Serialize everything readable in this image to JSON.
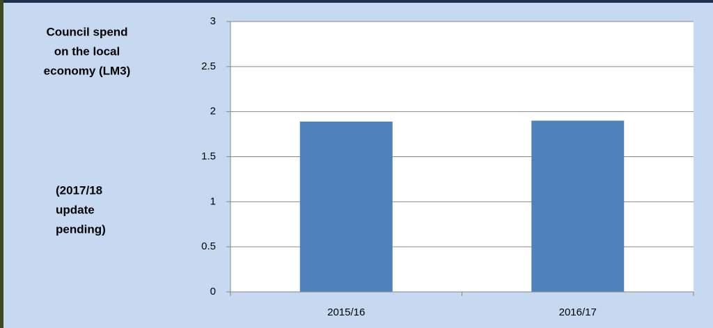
{
  "chart_data": {
    "type": "bar",
    "title": [
      "Council spend",
      "on the local",
      "economy (LM3)"
    ],
    "annotation": [
      "(2017/18",
      "update",
      "pending)"
    ],
    "categories": [
      "2015/16",
      "2016/17"
    ],
    "values": [
      1.89,
      1.9
    ],
    "color": "#4f81bd",
    "ylim": [
      0,
      3
    ],
    "yticks": [
      0,
      0.5,
      1,
      1.5,
      2,
      2.5,
      3
    ],
    "grid": true
  }
}
